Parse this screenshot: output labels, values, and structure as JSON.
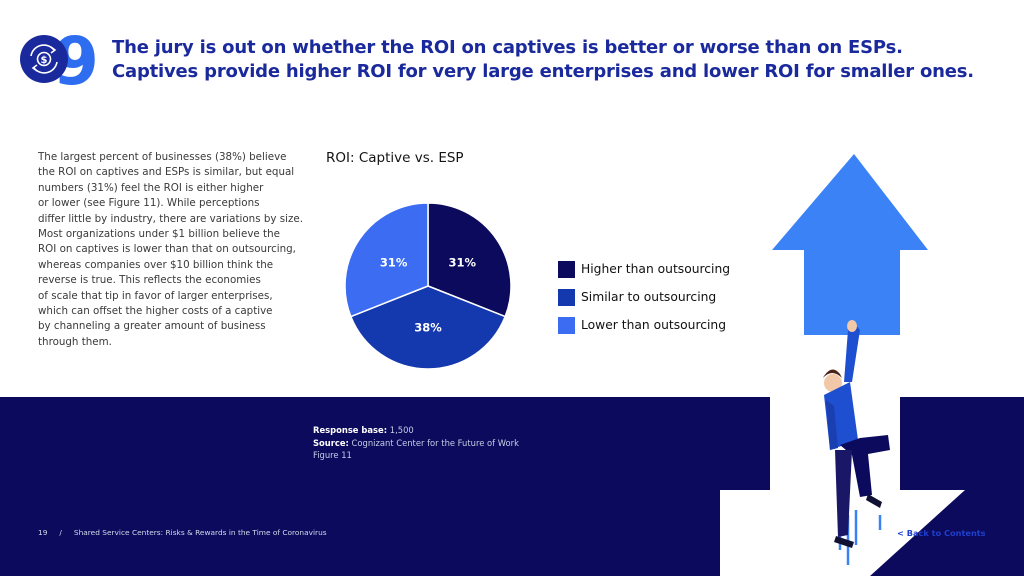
{
  "header": {
    "number": "9",
    "headline_line1": "The jury is out on whether the ROI on captives is better or worse than on ESPs.",
    "headline_line2": "Captives provide higher ROI for very large enterprises and lower ROI for smaller ones.",
    "badge_icon": "dollar-refresh-icon"
  },
  "body": {
    "paragraph": "The largest percent of businesses (38%) believe\nthe ROI on captives and ESPs is similar, but equal\nnumbers (31%) feel the ROI is either higher\nor lower (see Figure 11). While perceptions\ndiffer little by industry, there are variations by size.\nMost organizations under $1 billion believe the\nROI on captives is lower than that on outsourcing,\nwhereas companies over $10 billion think the\nreverse is true. This reflects the economies\nof scale that tip in favor of larger enterprises,\nwhich can offset the higher costs of a captive\nby channeling a greater amount of business\nthrough them."
  },
  "chart_data": {
    "type": "pie",
    "title": "ROI: Captive vs. ESP",
    "slices": [
      {
        "label": "Higher than outsourcing",
        "value": 31,
        "display": "31%",
        "color": "#0b0a5c"
      },
      {
        "label": "Similar to outsourcing",
        "value": 38,
        "display": "38%",
        "color": "#1438ad"
      },
      {
        "label": "Lower than outsourcing",
        "value": 31,
        "display": "31%",
        "color": "#3b6cf2"
      }
    ],
    "legend_position": "right"
  },
  "source": {
    "base_label": "Response base:",
    "base_value": "1,500",
    "source_label": "Source:",
    "source_value": "Cognizant Center for the Future of Work",
    "figure": "Figure 11"
  },
  "footer": {
    "page": "19",
    "separator": "/",
    "doc_title": "Shared Service Centers: Risks & Rewards in the Time of Coronavirus",
    "back_link": "< Back to Contents"
  },
  "colors": {
    "brand_blue": "#1a2a9c",
    "navy": "#0b0a5c",
    "arrow_blue": "#2f7df2"
  },
  "illustration": {
    "arrow_up_icon": "arrow-up-icon",
    "arrow_down_icon": "arrow-down-icon",
    "figure_icon": "man-climbing-icon"
  }
}
